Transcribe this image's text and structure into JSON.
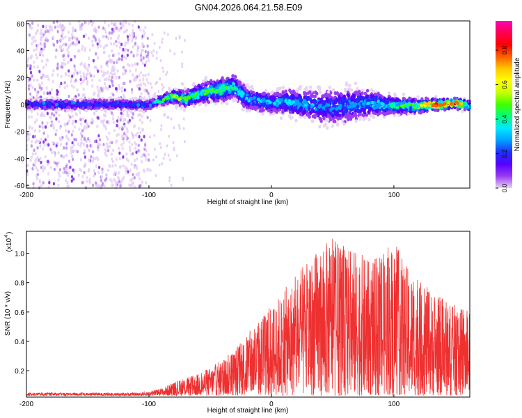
{
  "figure_title": "GN04.2026.064.21.58.E09",
  "chart_data": [
    {
      "type": "heatmap",
      "xlabel": "Height of straight line (km)",
      "ylabel": "Frequency (Hz)",
      "xlim": [
        -200,
        162
      ],
      "ylim": [
        -62,
        62
      ],
      "xticks": [
        "-200",
        "-100",
        "0",
        "100"
      ],
      "xtick_values": [
        -200,
        -100,
        0,
        100
      ],
      "yticks": [
        "60",
        "40",
        "20",
        "0",
        "-20",
        "-40",
        "-60"
      ],
      "ytick_values": [
        60,
        40,
        20,
        0,
        -20,
        -40,
        -60
      ],
      "colorbar": {
        "label": "Normalized spectral amplitude",
        "range": [
          0,
          0.97
        ],
        "ticks": [
          "0.0",
          "0.2",
          "0.4",
          "0.6",
          "0.8"
        ],
        "tick_values": [
          0.0,
          0.2,
          0.4,
          0.6,
          0.8
        ],
        "colors": [
          "#e8d4f4",
          "#9a3cf0",
          "#5800ff",
          "#1e30ff",
          "#00a0ff",
          "#00e8ff",
          "#00ff80",
          "#40ff00",
          "#c8ff00",
          "#ffff00",
          "#ffc800",
          "#ff6000",
          "#ff0000",
          "#ff0050",
          "#ff00b4"
        ]
      },
      "band_centerline": {
        "x": [
          -200,
          -150,
          -100,
          -90,
          -80,
          -70,
          -60,
          -50,
          -40,
          -30,
          -20,
          -10,
          0,
          10,
          20,
          30,
          40,
          50,
          60,
          70,
          80,
          90,
          100,
          110,
          120,
          130,
          140,
          150,
          162
        ],
        "y": [
          0,
          0,
          0,
          3,
          6,
          4,
          8,
          10,
          11,
          13,
          4,
          3,
          1,
          2,
          1,
          0,
          -1,
          -2,
          -1,
          0,
          1,
          0,
          -1,
          -1,
          -1,
          0,
          0,
          1,
          -1
        ]
      },
      "band_halfwidth": {
        "x": [
          -200,
          -100,
          -90,
          -60,
          -40,
          -20,
          0,
          20,
          40,
          60,
          80,
          100,
          130,
          162
        ],
        "y": [
          4,
          4,
          4,
          8,
          10,
          9,
          8,
          11,
          13,
          14,
          11,
          7,
          5,
          4
        ]
      },
      "peak_amplitude": {
        "x": [
          -200,
          -100,
          -90,
          -80,
          -60,
          -40,
          -20,
          0,
          20,
          40,
          60,
          80,
          100,
          120,
          135,
          150,
          162
        ],
        "y": [
          0.25,
          0.25,
          0.45,
          0.55,
          0.5,
          0.5,
          0.35,
          0.35,
          0.35,
          0.3,
          0.3,
          0.35,
          0.45,
          0.6,
          0.85,
          0.9,
          0.5
        ]
      },
      "scatter_noise_extent": [
        -200,
        -100
      ]
    },
    {
      "type": "line",
      "series": [
        {
          "name": "SNR",
          "color": "#ee3030"
        }
      ],
      "xlabel": "Height of straight line (km)",
      "ylabel": "SNR (10 * v/v)",
      "scale_label": "(x10",
      "scale_exponent": "4",
      "scale_suffix": ")",
      "xlim": [
        -200,
        162
      ],
      "ylim": [
        0.02,
        1.15
      ],
      "xticks": [
        "-200",
        "-100",
        "0",
        "100"
      ],
      "xtick_values": [
        -200,
        -100,
        0,
        100
      ],
      "yticks": [
        "0.2",
        "0.4",
        "0.6",
        "0.8",
        "1.0"
      ],
      "ytick_values": [
        0.2,
        0.4,
        0.6,
        0.8,
        1.0
      ],
      "envelope": {
        "x": [
          -200,
          -150,
          -110,
          -100,
          -90,
          -80,
          -70,
          -60,
          -50,
          -40,
          -30,
          -20,
          -10,
          0,
          10,
          20,
          30,
          40,
          50,
          60,
          70,
          80,
          90,
          100,
          110,
          120,
          130,
          140,
          150,
          162
        ],
        "y": [
          0.05,
          0.05,
          0.05,
          0.06,
          0.08,
          0.12,
          0.15,
          0.18,
          0.22,
          0.28,
          0.35,
          0.45,
          0.55,
          0.65,
          0.75,
          0.85,
          0.95,
          1.05,
          1.1,
          1.05,
          1.02,
          0.95,
          0.98,
          1.1,
          0.92,
          0.82,
          0.75,
          0.7,
          0.65,
          0.6
        ]
      },
      "noise_floor": 0.03
    }
  ]
}
